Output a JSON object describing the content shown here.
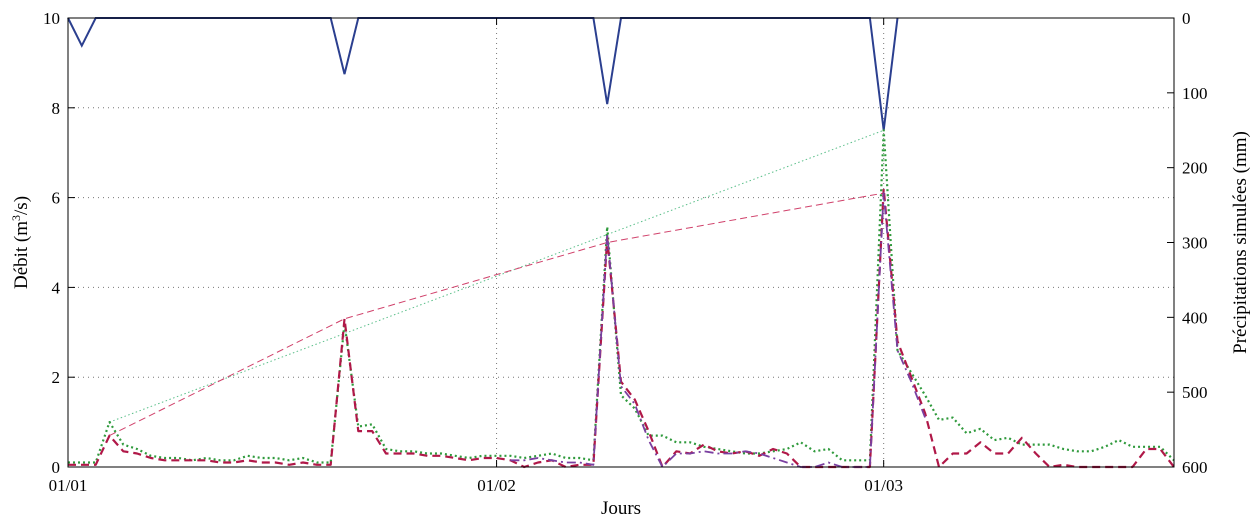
{
  "chart_data": {
    "type": "line",
    "xlabel": "Jours",
    "ylabel_parts": {
      "pre": "Débit (m",
      "sup": "3",
      "post": "/s)"
    },
    "y2label": "Précipitations simulées (mm)",
    "x_ticks": [
      "01/01",
      "01/02",
      "01/03"
    ],
    "x_tick_days": [
      0,
      31,
      59
    ],
    "xlim": [
      0,
      80
    ],
    "ylim": [
      0,
      10
    ],
    "y_ticks": [
      "0",
      "2",
      "4",
      "6",
      "8",
      "10"
    ],
    "y2lim": [
      0,
      600
    ],
    "y2_ticks": [
      "0",
      "100",
      "200",
      "300",
      "400",
      "500",
      "600"
    ],
    "y2_inverted": true,
    "grid": true,
    "colors": {
      "precip": "#2b3f8f",
      "green": "#2f9a3c",
      "red": "#b01848",
      "purple": "#7a3fa0",
      "green_env": "#5bbf8a",
      "red_env": "#d0406a",
      "y2_zero": "#4f8a6a"
    },
    "precip_series": {
      "axis": "y2",
      "x": [
        0,
        1,
        2,
        3,
        19,
        20,
        21,
        38,
        39,
        40,
        58,
        59,
        60
      ],
      "values": [
        0,
        37,
        0,
        0,
        0,
        75,
        0,
        0,
        115,
        0,
        0,
        150,
        0
      ]
    },
    "series": [
      {
        "style": "dotted",
        "color_key": "green",
        "x": [
          0,
          1,
          2,
          3,
          4,
          5,
          6,
          7,
          8,
          9,
          10,
          11,
          12,
          13,
          14,
          15,
          16,
          17,
          18,
          19,
          20,
          21,
          22,
          23,
          24,
          25,
          26,
          27,
          28,
          29,
          30,
          31,
          32,
          33,
          34,
          35,
          36,
          37,
          38,
          39,
          40,
          41,
          42,
          43,
          44,
          45,
          46,
          47,
          48,
          49,
          50,
          51,
          52,
          53,
          54,
          55,
          56,
          57,
          58,
          59,
          60,
          61,
          62,
          63,
          64,
          65,
          66,
          67,
          68,
          69,
          70,
          71,
          72,
          73,
          74,
          75,
          76,
          77,
          78,
          79,
          80
        ],
        "values": [
          0.1,
          0.1,
          0.1,
          1.0,
          0.5,
          0.4,
          0.25,
          0.2,
          0.2,
          0.15,
          0.2,
          0.15,
          0.15,
          0.25,
          0.2,
          0.2,
          0.15,
          0.2,
          0.1,
          0.1,
          3.2,
          0.9,
          0.95,
          0.4,
          0.35,
          0.35,
          0.3,
          0.3,
          0.25,
          0.2,
          0.25,
          0.25,
          0.25,
          0.2,
          0.25,
          0.3,
          0.2,
          0.2,
          0.15,
          5.35,
          1.6,
          1.3,
          0.7,
          0.7,
          0.55,
          0.55,
          0.45,
          0.4,
          0.35,
          0.3,
          0.3,
          0.35,
          0.4,
          0.55,
          0.35,
          0.4,
          0.15,
          0.15,
          0.15,
          7.5,
          2.6,
          2.1,
          1.6,
          1.05,
          1.1,
          0.75,
          0.85,
          0.6,
          0.65,
          0.5,
          0.5,
          0.5,
          0.4,
          0.35,
          0.35,
          0.45,
          0.6,
          0.45,
          0.45,
          0.45,
          0.15
        ]
      },
      {
        "style": "dashed",
        "color_key": "red",
        "x": [
          0,
          1,
          2,
          3,
          4,
          5,
          6,
          7,
          8,
          9,
          10,
          11,
          12,
          13,
          14,
          15,
          16,
          17,
          18,
          19,
          20,
          21,
          22,
          23,
          24,
          25,
          26,
          27,
          28,
          29,
          30,
          31,
          32,
          33,
          34,
          35,
          36,
          37,
          38,
          39,
          40,
          41,
          42,
          43,
          44,
          45,
          46,
          47,
          48,
          49,
          50,
          51,
          52,
          53,
          54,
          55,
          56,
          57,
          58,
          59,
          60,
          61,
          62,
          63,
          64,
          65,
          66,
          67,
          68,
          69,
          70,
          71,
          72,
          73,
          74,
          75,
          76,
          77,
          78,
          79,
          80
        ],
        "values": [
          0.05,
          0.05,
          0.05,
          0.7,
          0.35,
          0.3,
          0.2,
          0.15,
          0.15,
          0.15,
          0.15,
          0.1,
          0.1,
          0.15,
          0.1,
          0.1,
          0.05,
          0.1,
          0.05,
          0.05,
          3.3,
          0.8,
          0.8,
          0.3,
          0.3,
          0.3,
          0.25,
          0.25,
          0.2,
          0.15,
          0.2,
          0.2,
          0.15,
          0.0,
          0.1,
          0.15,
          0.0,
          0.05,
          0.05,
          5.1,
          1.9,
          1.5,
          0.8,
          0.0,
          0.35,
          0.3,
          0.5,
          0.35,
          0.3,
          0.35,
          0.25,
          0.4,
          0.3,
          0.0,
          0.0,
          0.0,
          0.0,
          0.0,
          0.0,
          6.2,
          2.8,
          2.0,
          1.2,
          0.0,
          0.3,
          0.3,
          0.55,
          0.3,
          0.3,
          0.65,
          0.3,
          0.0,
          0.05,
          0.0,
          0.0,
          0.0,
          0.0,
          0.0,
          0.4,
          0.4,
          0.0
        ]
      },
      {
        "style": "dash-dot",
        "color_key": "purple",
        "x": [
          32,
          33,
          34,
          35,
          36,
          37,
          38,
          39,
          40,
          41,
          42,
          43,
          44,
          45,
          46,
          47,
          48,
          49,
          50,
          51,
          52,
          53,
          54,
          55,
          56,
          57,
          58,
          59,
          60,
          61,
          62
        ],
        "values": [
          0.15,
          0.15,
          0.2,
          0.15,
          0.1,
          0.1,
          0.05,
          5.2,
          1.8,
          1.4,
          0.6,
          0.0,
          0.3,
          0.3,
          0.35,
          0.3,
          0.3,
          0.35,
          0.3,
          0.2,
          0.1,
          0.0,
          0.0,
          0.1,
          0.0,
          0.0,
          0.0,
          6.1,
          2.6,
          1.9,
          1.1
        ]
      }
    ],
    "envelopes": [
      {
        "style": "thin-dotted",
        "color_key": "green_env",
        "x": [
          3,
          59
        ],
        "values": [
          1.0,
          7.5
        ]
      },
      {
        "style": "thin-dashed",
        "color_key": "red_env",
        "x": [
          3,
          20,
          39,
          59
        ],
        "values": [
          0.7,
          3.3,
          5.0,
          6.1
        ]
      }
    ]
  }
}
